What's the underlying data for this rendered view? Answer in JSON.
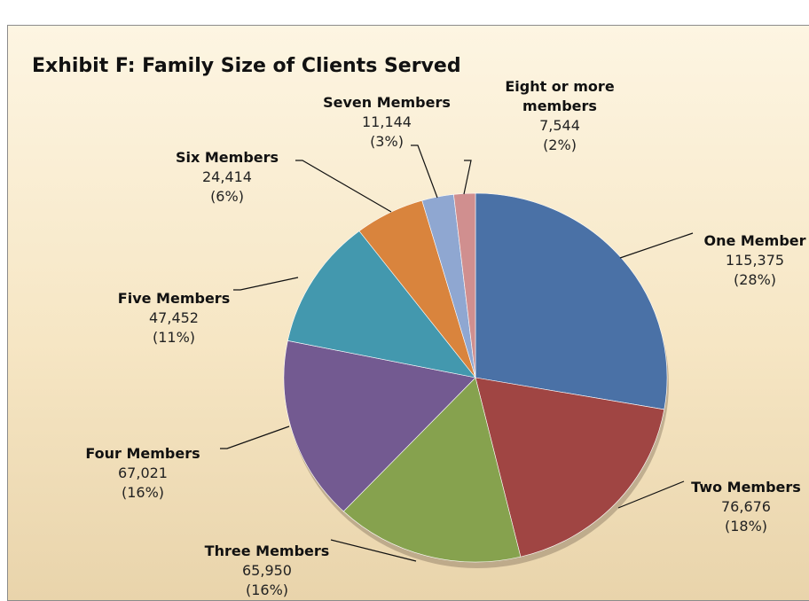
{
  "chart_data": {
    "type": "pie",
    "title": "Exhibit F: Family Size of Clients Served",
    "categories": [
      "One Member",
      "Two Members",
      "Three Members",
      "Four Members",
      "Five Members",
      "Six Members",
      "Seven Members",
      "Eight or more members"
    ],
    "values": [
      115375,
      76676,
      65950,
      67021,
      47452,
      24414,
      11144,
      7544
    ],
    "value_labels": [
      "115,375",
      "76,676",
      "65,950",
      "67,021",
      "47,452",
      "24,414",
      "11,144",
      "7,544"
    ],
    "percents": [
      28,
      18,
      16,
      16,
      11,
      6,
      3,
      2
    ],
    "percent_labels": [
      "(28%)",
      "(18%)",
      "(16%)",
      "(16%)",
      "(11%)",
      "(6%)",
      "(3%)",
      "(2%)"
    ],
    "colors": [
      "#4a71a6",
      "#a04543",
      "#86a24e",
      "#735a91",
      "#4398ae",
      "#d9843d",
      "#8fa7d1",
      "#d08f8f"
    ]
  }
}
